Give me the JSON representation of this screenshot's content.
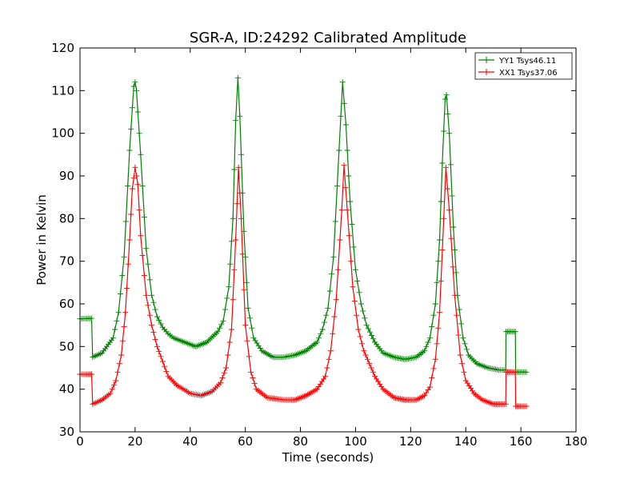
{
  "chart_data": {
    "type": "line",
    "title": "SGR-A, ID:24292 Calibrated Amplitude",
    "xlabel": "Time (seconds)",
    "ylabel": "Power in Kelvin",
    "xlim": [
      0,
      180
    ],
    "ylim": [
      30,
      120
    ],
    "xticks": [
      0,
      20,
      40,
      60,
      80,
      100,
      120,
      140,
      160,
      180
    ],
    "yticks": [
      30,
      40,
      50,
      60,
      70,
      80,
      90,
      100,
      110,
      120
    ],
    "grid": false,
    "legend_position": "top-right",
    "marker": "+",
    "series": [
      {
        "name": "YY1 Tsys46.11",
        "color": "#008000",
        "points": [
          [
            0,
            56.5
          ],
          [
            4.2,
            56.6
          ],
          [
            4.6,
            47.5
          ],
          [
            8,
            48.5
          ],
          [
            12,
            52
          ],
          [
            14,
            58
          ],
          [
            16,
            71
          ],
          [
            18,
            96
          ],
          [
            19.5,
            111
          ],
          [
            20,
            112
          ],
          [
            20.5,
            110
          ],
          [
            22,
            95
          ],
          [
            24,
            73
          ],
          [
            26,
            62
          ],
          [
            28,
            57
          ],
          [
            30,
            54.5
          ],
          [
            32,
            53
          ],
          [
            34,
            52
          ],
          [
            38,
            51
          ],
          [
            42,
            50
          ],
          [
            46,
            51
          ],
          [
            50,
            53.5
          ],
          [
            52,
            56
          ],
          [
            54,
            64
          ],
          [
            55.5,
            80
          ],
          [
            56.5,
            103
          ],
          [
            57.3,
            113
          ],
          [
            58,
            104
          ],
          [
            59.5,
            77
          ],
          [
            61,
            59
          ],
          [
            63,
            52
          ],
          [
            66,
            49
          ],
          [
            70,
            47.5
          ],
          [
            74,
            47.5
          ],
          [
            78,
            48
          ],
          [
            82,
            49
          ],
          [
            86,
            51
          ],
          [
            88,
            54
          ],
          [
            90,
            59
          ],
          [
            92,
            71
          ],
          [
            94,
            96
          ],
          [
            95.3,
            112
          ],
          [
            96.5,
            102
          ],
          [
            98,
            84
          ],
          [
            100,
            68
          ],
          [
            102,
            60
          ],
          [
            104,
            55
          ],
          [
            107,
            51
          ],
          [
            110,
            48.5
          ],
          [
            114,
            47.5
          ],
          [
            118,
            47
          ],
          [
            122,
            47.5
          ],
          [
            125,
            49
          ],
          [
            127,
            52
          ],
          [
            129,
            60
          ],
          [
            130.5,
            75
          ],
          [
            131.5,
            93
          ],
          [
            132.5,
            108
          ],
          [
            133,
            109
          ],
          [
            134,
            100
          ],
          [
            135.5,
            78
          ],
          [
            137,
            62
          ],
          [
            139,
            52
          ],
          [
            141,
            48
          ],
          [
            144,
            46
          ],
          [
            148,
            45
          ],
          [
            152,
            44.5
          ],
          [
            154.5,
            44.5
          ],
          [
            154.6,
            53.5
          ],
          [
            158,
            53.5
          ],
          [
            158.1,
            44
          ],
          [
            162,
            44
          ]
        ]
      },
      {
        "name": "XX1 Tsys37.06",
        "color": "#ff0000",
        "points": [
          [
            0,
            43.5
          ],
          [
            4.2,
            43.5
          ],
          [
            4.6,
            36.5
          ],
          [
            8,
            37.5
          ],
          [
            11,
            39
          ],
          [
            13,
            42
          ],
          [
            15,
            48
          ],
          [
            16.5,
            58
          ],
          [
            18,
            75
          ],
          [
            19,
            87
          ],
          [
            20,
            92
          ],
          [
            21,
            88
          ],
          [
            22,
            76
          ],
          [
            24,
            62
          ],
          [
            26,
            55
          ],
          [
            28,
            50
          ],
          [
            30,
            46.5
          ],
          [
            32,
            43
          ],
          [
            35,
            41
          ],
          [
            40,
            39
          ],
          [
            44,
            38.5
          ],
          [
            48,
            39.5
          ],
          [
            51,
            41.5
          ],
          [
            53,
            45
          ],
          [
            55,
            54
          ],
          [
            56.5,
            75
          ],
          [
            57.5,
            92
          ],
          [
            58.5,
            80
          ],
          [
            60,
            55
          ],
          [
            62,
            44
          ],
          [
            64,
            40
          ],
          [
            68,
            38
          ],
          [
            74,
            37.5
          ],
          [
            78,
            37.5
          ],
          [
            82,
            38.5
          ],
          [
            86,
            40
          ],
          [
            89,
            43
          ],
          [
            91,
            49
          ],
          [
            93,
            61
          ],
          [
            95,
            82
          ],
          [
            95.8,
            92.5
          ],
          [
            97,
            82
          ],
          [
            99,
            64
          ],
          [
            101,
            54
          ],
          [
            103,
            49
          ],
          [
            105,
            46
          ],
          [
            107,
            43
          ],
          [
            110,
            40
          ],
          [
            114,
            38
          ],
          [
            118,
            37.5
          ],
          [
            122,
            37.5
          ],
          [
            125,
            38.5
          ],
          [
            127,
            40.5
          ],
          [
            129,
            47
          ],
          [
            130.5,
            58
          ],
          [
            132,
            80
          ],
          [
            132.8,
            92
          ],
          [
            134,
            82
          ],
          [
            136,
            62
          ],
          [
            138,
            48
          ],
          [
            140,
            42
          ],
          [
            143,
            39
          ],
          [
            146,
            37.5
          ],
          [
            150,
            36.5
          ],
          [
            154.5,
            36.5
          ],
          [
            154.6,
            44
          ],
          [
            158,
            44
          ],
          [
            158.1,
            36
          ],
          [
            162,
            36
          ]
        ]
      }
    ]
  }
}
